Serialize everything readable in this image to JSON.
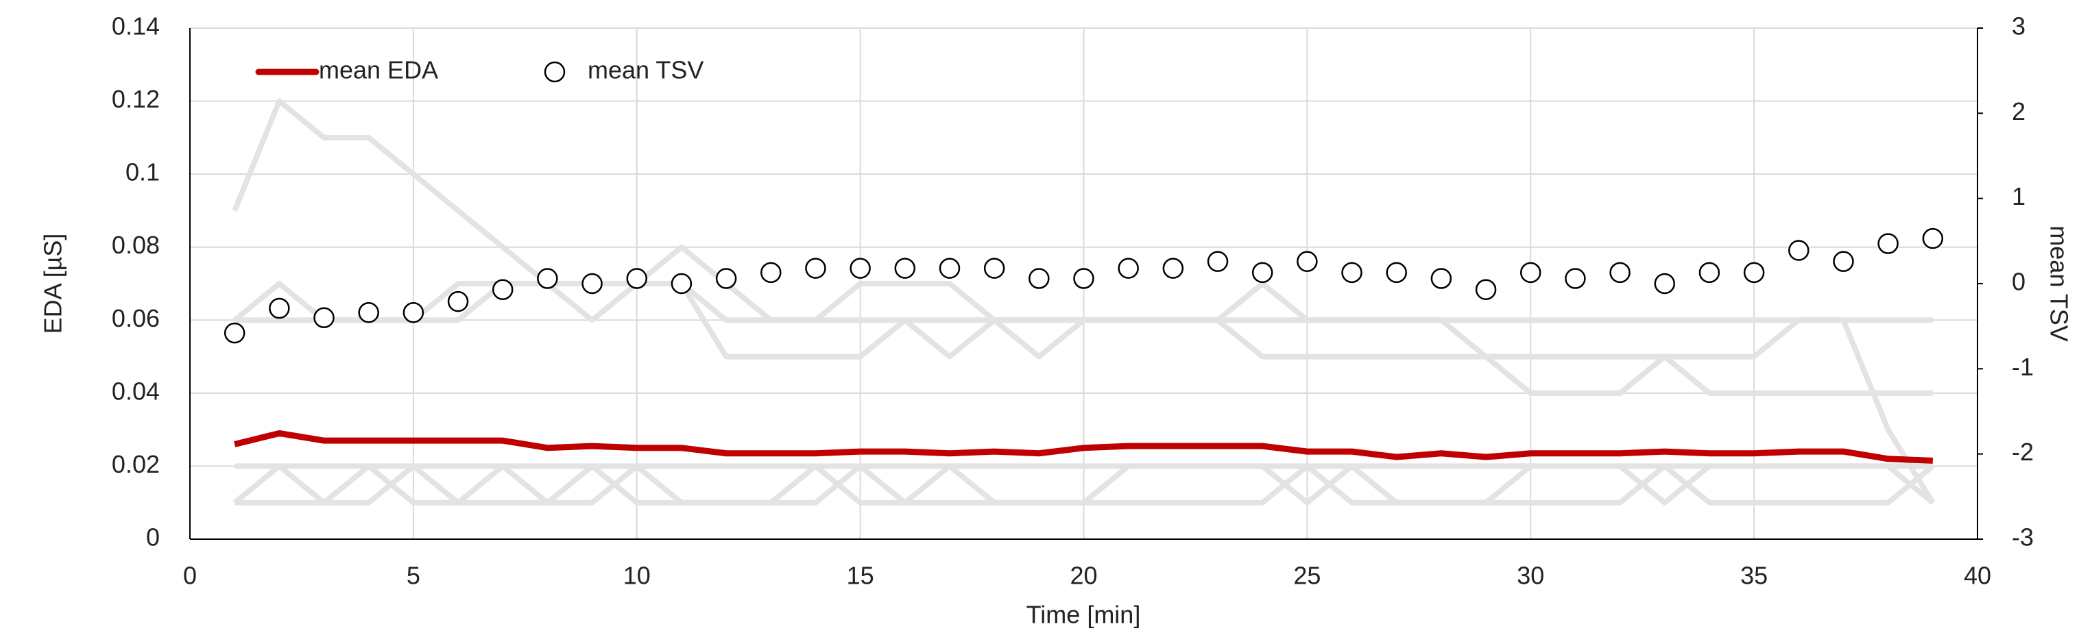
{
  "chart_data": {
    "type": "line",
    "x": [
      1,
      2,
      3,
      4,
      5,
      6,
      7,
      8,
      9,
      10,
      11,
      12,
      13,
      14,
      15,
      16,
      17,
      18,
      19,
      20,
      21,
      22,
      23,
      24,
      25,
      26,
      27,
      28,
      29,
      30,
      31,
      32,
      33,
      34,
      35,
      36,
      37,
      38,
      39
    ],
    "xlabel": "Time [min]",
    "ylabel": "EDA [µS]",
    "y2label": "mean TSV",
    "xlim": [
      0,
      40
    ],
    "xticks": [
      0,
      5,
      10,
      15,
      20,
      25,
      30,
      35,
      40
    ],
    "ylim": [
      0,
      0.14
    ],
    "yticks": [
      0,
      0.02,
      0.04,
      0.06,
      0.08,
      0.1,
      0.12,
      0.14
    ],
    "y2lim": [
      -3,
      3
    ],
    "y2ticks": [
      -3,
      -2,
      -1,
      0,
      1,
      2,
      3
    ],
    "grid": true,
    "legend": "top-left",
    "series": [
      {
        "color": "#e3e3e3",
        "values": [
          0.09,
          0.12,
          0.11,
          0.11,
          0.1,
          0.09,
          0.08,
          0.07,
          0.06,
          0.07,
          0.08,
          0.07,
          0.06,
          0.06,
          0.06,
          0.06,
          0.06,
          0.06,
          0.06,
          0.06,
          0.06,
          0.06,
          0.06,
          0.06,
          0.06,
          0.06,
          0.06,
          0.06,
          0.06,
          0.06,
          0.06,
          0.06,
          0.06,
          0.06,
          0.06,
          0.06,
          0.06,
          0.06,
          0.06
        ]
      },
      {
        "color": "#e3e3e3",
        "values": [
          0.06,
          0.07,
          0.06,
          0.06,
          0.06,
          0.06,
          0.07,
          0.07,
          0.07,
          0.07,
          0.07,
          0.05,
          0.05,
          0.05,
          0.05,
          0.06,
          0.05,
          0.06,
          0.05,
          0.06,
          0.06,
          0.06,
          0.06,
          0.05,
          0.05,
          0.05,
          0.05,
          0.05,
          0.05,
          0.05,
          0.05,
          0.05,
          0.05,
          0.05,
          0.05,
          0.06,
          0.06,
          0.03,
          0.01
        ]
      },
      {
        "color": "#e3e3e3",
        "values": [
          0.06,
          0.06,
          0.06,
          0.06,
          0.06,
          0.07,
          0.07,
          0.07,
          0.07,
          0.07,
          0.07,
          0.06,
          0.06,
          0.06,
          0.07,
          0.07,
          0.07,
          0.06,
          0.06,
          0.06,
          0.06,
          0.06,
          0.06,
          0.07,
          0.06,
          0.06,
          0.06,
          0.06,
          0.05,
          0.04,
          0.04,
          0.04,
          0.05,
          0.04,
          0.04,
          0.04,
          0.04,
          0.04,
          0.04
        ]
      },
      {
        "color": "#e3e3e3",
        "values": [
          0.02,
          0.02,
          0.02,
          0.02,
          0.02,
          0.02,
          0.02,
          0.02,
          0.02,
          0.02,
          0.02,
          0.02,
          0.02,
          0.02,
          0.02,
          0.02,
          0.02,
          0.02,
          0.02,
          0.02,
          0.02,
          0.02,
          0.02,
          0.02,
          0.02,
          0.02,
          0.02,
          0.02,
          0.02,
          0.02,
          0.02,
          0.02,
          0.02,
          0.02,
          0.02,
          0.02,
          0.02,
          0.02,
          0.02
        ]
      },
      {
        "color": "#e3e3e3",
        "values": [
          0.01,
          0.02,
          0.01,
          0.01,
          0.02,
          0.01,
          0.02,
          0.01,
          0.01,
          0.02,
          0.01,
          0.01,
          0.01,
          0.01,
          0.02,
          0.01,
          0.02,
          0.01,
          0.01,
          0.01,
          0.02,
          0.02,
          0.02,
          0.02,
          0.01,
          0.02,
          0.01,
          0.01,
          0.01,
          0.02,
          0.02,
          0.02,
          0.01,
          0.02,
          0.02,
          0.02,
          0.02,
          0.02,
          0.01
        ]
      },
      {
        "color": "#e3e3e3",
        "values": [
          0.01,
          0.01,
          0.01,
          0.02,
          0.01,
          0.01,
          0.01,
          0.01,
          0.02,
          0.01,
          0.01,
          0.01,
          0.01,
          0.02,
          0.01,
          0.01,
          0.01,
          0.01,
          0.01,
          0.01,
          0.01,
          0.01,
          0.01,
          0.01,
          0.02,
          0.01,
          0.01,
          0.01,
          0.01,
          0.01,
          0.01,
          0.01,
          0.02,
          0.01,
          0.01,
          0.01,
          0.01,
          0.01,
          0.02
        ]
      },
      {
        "name": "mean EDA",
        "color": "#c00000",
        "values": [
          0.026,
          0.029,
          0.027,
          0.027,
          0.027,
          0.027,
          0.027,
          0.025,
          0.0255,
          0.025,
          0.025,
          0.0235,
          0.0235,
          0.0235,
          0.024,
          0.024,
          0.0235,
          0.024,
          0.0235,
          0.025,
          0.0255,
          0.0255,
          0.0255,
          0.0255,
          0.024,
          0.024,
          0.0225,
          0.0235,
          0.0225,
          0.0235,
          0.0235,
          0.0235,
          0.024,
          0.0235,
          0.0235,
          0.024,
          0.024,
          0.022,
          0.0215
        ]
      },
      {
        "name": "mean TSV",
        "type": "scatter",
        "axis": "y2",
        "color": "#000000",
        "values": [
          -0.58,
          -0.29,
          -0.4,
          -0.34,
          -0.34,
          -0.21,
          -0.07,
          0.06,
          0,
          0.06,
          0,
          0.06,
          0.13,
          0.18,
          0.18,
          0.18,
          0.18,
          0.18,
          0.06,
          0.06,
          0.18,
          0.18,
          0.26,
          0.13,
          0.26,
          0.13,
          0.13,
          0.06,
          -0.07,
          0.13,
          0.06,
          0.13,
          0,
          0.13,
          0.13,
          0.39,
          0.26,
          0.47,
          0.53
        ]
      }
    ]
  }
}
